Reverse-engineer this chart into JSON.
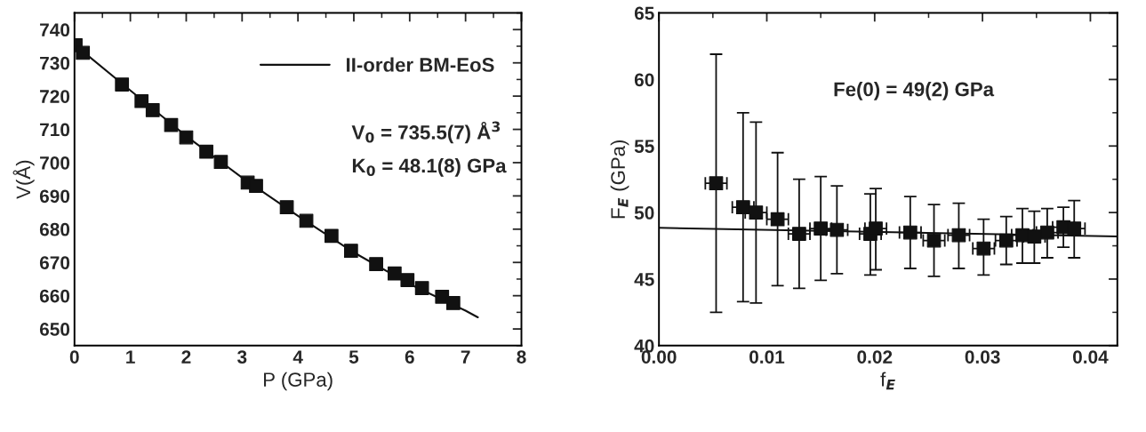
{
  "chart_data": [
    {
      "type": "scatter",
      "xlabel": "P (GPa)",
      "ylabel": "V(Å)",
      "xlim": [
        0,
        8
      ],
      "ylim": [
        645,
        745
      ],
      "xticks": [
        0,
        1,
        2,
        3,
        4,
        5,
        6,
        7,
        8
      ],
      "yticks": [
        650,
        660,
        670,
        680,
        690,
        700,
        710,
        720,
        730,
        740
      ],
      "grid": false,
      "legend": "top right",
      "annotations": [
        "V$_{0}$ = 735.5(7) Å$^{3}$",
        "K$_{0}$ = 48.1(8) GPa"
      ],
      "series": [
        {
          "marker": "square",
          "color": "#111111",
          "x": [
            0.02,
            0.15,
            0.85,
            1.2,
            1.4,
            1.73,
            2.0,
            2.36,
            2.62,
            3.1,
            3.25,
            3.8,
            4.15,
            4.6,
            4.95,
            5.4,
            5.73,
            5.96,
            6.22,
            6.58,
            6.78
          ],
          "values": [
            735.3,
            733,
            723.5,
            718.5,
            715.8,
            711.3,
            707.6,
            703.3,
            700.2,
            694,
            693,
            686.6,
            682.5,
            678,
            673.5,
            669.5,
            666.7,
            664.7,
            662.3,
            659.7,
            657.8
          ]
        },
        {
          "type": "line",
          "name": "II-order BM-EoS",
          "color": "#111111",
          "line_style": "solid",
          "x": [
            0,
            1,
            2,
            3,
            4,
            5,
            6,
            7,
            7.22
          ],
          "values": [
            735.5,
            721.7,
            708,
            695.5,
            684,
            673,
            663.5,
            655.5,
            653.5
          ]
        }
      ]
    },
    {
      "type": "scatter",
      "xlabel": "f$_{E}$",
      "ylabel": "F$_{E}$ (GPa)",
      "xlim": [
        0,
        0.0425
      ],
      "ylim": [
        40,
        65
      ],
      "xticks": [
        {
          "value": 0,
          "label": "0.00"
        },
        {
          "value": 0.01,
          "label": "0.01"
        },
        {
          "value": 0.02,
          "label": "0.02"
        },
        {
          "value": 0.03,
          "label": "0.03"
        },
        {
          "value": 0.04,
          "label": "0.04"
        }
      ],
      "yticks": [
        40,
        45,
        50,
        55,
        60,
        65
      ],
      "grid": false,
      "annotations": [
        "Fe(0) = 49(2) GPa"
      ],
      "series": [
        {
          "marker": "square",
          "color": "#111111",
          "x": [
            0.0053,
            0.0078,
            0.009,
            0.011,
            0.013,
            0.015,
            0.0165,
            0.0196,
            0.0201,
            0.0233,
            0.0255,
            0.0278,
            0.0301,
            0.0322,
            0.0337,
            0.0348,
            0.036,
            0.0375,
            0.0385
          ],
          "values": [
            52.2,
            50.4,
            50.0,
            49.5,
            48.4,
            48.8,
            48.7,
            48.4,
            48.8,
            48.5,
            47.9,
            48.3,
            47.3,
            47.9,
            48.3,
            48.2,
            48.5,
            48.9,
            48.8
          ],
          "errors": [
            [
              42.5,
              61.9
            ],
            [
              43.3,
              57.5
            ],
            [
              43.2,
              56.8
            ],
            [
              44.5,
              54.5
            ],
            [
              44.3,
              52.5
            ],
            [
              44.9,
              52.7
            ],
            [
              45.4,
              52.0
            ],
            [
              45.3,
              51.4
            ],
            [
              45.7,
              51.8
            ],
            [
              45.8,
              51.2
            ],
            [
              45.2,
              50.6
            ],
            [
              45.8,
              50.7
            ],
            [
              45.3,
              49.5
            ],
            [
              46.1,
              49.7
            ],
            [
              46.2,
              50.3
            ],
            [
              46.2,
              50.1
            ],
            [
              46.6,
              50.3
            ],
            [
              47.4,
              50.4
            ],
            [
              46.6,
              50.9
            ]
          ],
          "xerrors": [
            0.001,
            0.001,
            0.001,
            0.001,
            0.001,
            0.001,
            0.001,
            0.001,
            0.001,
            0.001,
            0.001,
            0.001,
            0.001,
            0.001,
            0.001,
            0.001,
            0.001,
            0.001,
            0.001
          ]
        },
        {
          "type": "line",
          "color": "#111111",
          "line_style": "solid",
          "x": [
            0,
            0.0425
          ],
          "values": [
            48.85,
            48.2
          ]
        }
      ]
    }
  ]
}
